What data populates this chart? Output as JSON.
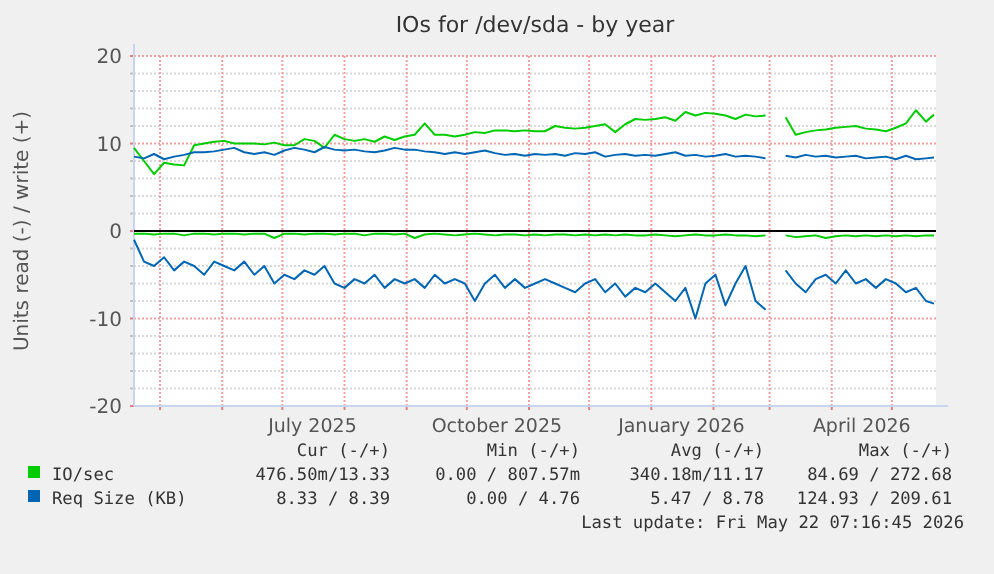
{
  "chart_data": {
    "type": "line",
    "title": "IOs for /dev/sda - by year",
    "ylabel": "Units read (-) / write (+)",
    "x": [
      "2025-04-18",
      "2025-04-23",
      "2025-04-28",
      "2025-05-03",
      "2025-05-08",
      "2025-05-13",
      "2025-05-18",
      "2025-05-23",
      "2025-05-28",
      "2025-06-02",
      "2025-06-07",
      "2025-06-12",
      "2025-06-17",
      "2025-06-22",
      "2025-06-27",
      "2025-07-02",
      "2025-07-07",
      "2025-07-12",
      "2025-07-17",
      "2025-07-22",
      "2025-07-27",
      "2025-08-01",
      "2025-08-06",
      "2025-08-11",
      "2025-08-16",
      "2025-08-21",
      "2025-08-26",
      "2025-08-31",
      "2025-09-05",
      "2025-09-10",
      "2025-09-15",
      "2025-09-20",
      "2025-09-25",
      "2025-09-30",
      "2025-10-05",
      "2025-10-10",
      "2025-10-15",
      "2025-10-20",
      "2025-10-25",
      "2025-10-30",
      "2025-11-04",
      "2025-11-09",
      "2025-11-14",
      "2025-11-19",
      "2025-11-24",
      "2025-11-29",
      "2025-12-04",
      "2025-12-09",
      "2025-12-14",
      "2025-12-19",
      "2025-12-24",
      "2025-12-29",
      "2026-01-03",
      "2026-01-08",
      "2026-01-13",
      "2026-01-18",
      "2026-01-23",
      "2026-01-28",
      "2026-02-02",
      "2026-02-07",
      "2026-02-12",
      "2026-02-17",
      "2026-02-22",
      "2026-02-27",
      "2026-03-04",
      "2026-03-09",
      "2026-03-14",
      "2026-03-19",
      "2026-03-24",
      "2026-03-29",
      "2026-04-03",
      "2026-04-08",
      "2026-04-13",
      "2026-04-18",
      "2026-04-23",
      "2026-04-28",
      "2026-05-03",
      "2026-05-08",
      "2026-05-13",
      "2026-05-18",
      "2026-05-22"
    ],
    "series": [
      {
        "name": "IO/sec",
        "color": "#00cc00",
        "values": [
          9.5,
          8,
          6.5,
          7.8,
          7.6,
          7.5,
          9.8,
          10,
          10.2,
          10.3,
          10,
          10,
          10,
          9.9,
          10.1,
          9.8,
          9.8,
          10.5,
          10.3,
          9.5,
          11,
          10.5,
          10.3,
          10.5,
          10.2,
          10.8,
          10.4,
          10.8,
          11,
          12.3,
          11,
          11,
          10.8,
          11,
          11.3,
          11.2,
          11.5,
          11.5,
          11.4,
          11.5,
          11.4,
          11.4,
          12,
          11.8,
          11.7,
          11.8,
          12,
          12.2,
          11.3,
          12.2,
          12.8,
          12.7,
          12.8,
          13,
          12.6,
          13.6,
          13.2,
          13.5,
          13.4,
          13.2,
          12.8,
          13.3,
          13.1,
          13.2,
          null,
          13,
          11,
          11.3,
          11.5,
          11.6,
          11.8,
          11.9,
          12,
          11.7,
          11.6,
          11.4,
          11.8,
          12.3,
          13.8,
          12.5,
          13.3
        ]
      },
      {
        "color": "#00cc00",
        "values": [
          -0.3,
          -0.3,
          -0.4,
          -0.3,
          -0.3,
          -0.5,
          -0.3,
          -0.3,
          -0.4,
          -0.3,
          -0.3,
          -0.4,
          -0.3,
          -0.3,
          -0.8,
          -0.3,
          -0.3,
          -0.4,
          -0.3,
          -0.3,
          -0.4,
          -0.3,
          -0.3,
          -0.5,
          -0.3,
          -0.3,
          -0.4,
          -0.3,
          -0.8,
          -0.4,
          -0.3,
          -0.4,
          -0.5,
          -0.4,
          -0.3,
          -0.4,
          -0.5,
          -0.4,
          -0.4,
          -0.5,
          -0.4,
          -0.5,
          -0.4,
          -0.4,
          -0.5,
          -0.4,
          -0.5,
          -0.4,
          -0.5,
          -0.4,
          -0.5,
          -0.5,
          -0.4,
          -0.5,
          -0.6,
          -0.5,
          -0.4,
          -0.5,
          -0.5,
          -0.4,
          -0.5,
          -0.5,
          -0.6,
          -0.5,
          null,
          -0.5,
          -0.7,
          -0.6,
          -0.5,
          -0.8,
          -0.6,
          -0.5,
          -0.6,
          -0.5,
          -0.6,
          -0.5,
          -0.6,
          -0.5,
          -0.6,
          -0.5,
          -0.5
        ]
      },
      {
        "name": "Req Size (KB)",
        "color": "#0066b3",
        "values": [
          8.5,
          8.3,
          8.8,
          8.2,
          8.5,
          8.7,
          9,
          9,
          9.1,
          9.3,
          9.5,
          9,
          8.8,
          9,
          8.7,
          9.2,
          9.5,
          9.3,
          9,
          9.6,
          9.3,
          9.2,
          9.3,
          9.1,
          9,
          9.2,
          9.5,
          9.3,
          9.3,
          9.1,
          9,
          8.8,
          9,
          8.8,
          9,
          9.2,
          8.9,
          8.7,
          8.8,
          8.6,
          8.8,
          8.7,
          8.8,
          8.6,
          8.9,
          8.8,
          9,
          8.5,
          8.7,
          8.8,
          8.6,
          8.7,
          8.6,
          8.8,
          9,
          8.6,
          8.7,
          8.5,
          8.6,
          8.8,
          8.5,
          8.6,
          8.5,
          8.3,
          null,
          8.6,
          8.4,
          8.7,
          8.5,
          8.6,
          8.4,
          8.5,
          8.6,
          8.3,
          8.4,
          8.5,
          8.2,
          8.6,
          8.2,
          8.3,
          8.4
        ]
      },
      {
        "color": "#0066b3",
        "values": [
          -1,
          -3.5,
          -4,
          -3,
          -4.5,
          -3.5,
          -4,
          -5,
          -3.5,
          -4,
          -4.5,
          -3.5,
          -5,
          -4,
          -6,
          -5,
          -5.5,
          -4.5,
          -5,
          -4,
          -6,
          -6.5,
          -5.5,
          -6,
          -5,
          -6.5,
          -5.5,
          -6,
          -5.5,
          -6.5,
          -5,
          -6,
          -5.5,
          -6,
          -8,
          -6,
          -5,
          -6.5,
          -5.5,
          -6.5,
          -6,
          -5.5,
          -6,
          -6.5,
          -7,
          -6,
          -5.5,
          -7,
          -6,
          -7.5,
          -6.5,
          -7,
          -6,
          -7,
          -8,
          -6.5,
          -10,
          -6,
          -5,
          -8.5,
          -6,
          -4,
          -8,
          -9,
          null,
          -4.5,
          -6,
          -7,
          -5.5,
          -5,
          -6,
          -4.5,
          -6,
          -5.5,
          -6.5,
          -5.5,
          -6,
          -7,
          -6.5,
          -8,
          -8.3
        ]
      }
    ],
    "xlim": [
      "2025-04-18",
      "2026-05-23"
    ],
    "xticks": [
      {
        "value": "2025-05-01",
        "label": null
      },
      {
        "value": "2025-06-01",
        "label": null
      },
      {
        "value": "2025-07-01",
        "label": null
      },
      {
        "value": "2025-07-16",
        "label": "July 2025"
      },
      {
        "value": "2025-08-01",
        "label": null
      },
      {
        "value": "2025-09-01",
        "label": null
      },
      {
        "value": "2025-10-01",
        "label": null
      },
      {
        "value": "2025-10-16",
        "label": "October 2025"
      },
      {
        "value": "2025-11-01",
        "label": null
      },
      {
        "value": "2025-12-01",
        "label": null
      },
      {
        "value": "2026-01-01",
        "label": null
      },
      {
        "value": "2026-01-16",
        "label": "January 2026"
      },
      {
        "value": "2026-02-01",
        "label": null
      },
      {
        "value": "2026-03-01",
        "label": null
      },
      {
        "value": "2026-04-01",
        "label": null
      },
      {
        "value": "2026-04-16",
        "label": "April 2026"
      },
      {
        "value": "2026-05-01",
        "label": null
      }
    ],
    "ylim": [
      -20,
      20
    ],
    "yticks": [
      -20,
      {
        "value": -18,
        "label": null
      },
      {
        "value": -16,
        "label": null
      },
      {
        "value": -14,
        "label": null
      },
      {
        "value": -12,
        "label": null
      },
      -10,
      {
        "value": -8,
        "label": null
      },
      {
        "value": -6,
        "label": null
      },
      {
        "value": -4,
        "label": null
      },
      {
        "value": -2,
        "label": null
      },
      0,
      {
        "value": 2,
        "label": null
      },
      {
        "value": 4,
        "label": null
      },
      {
        "value": 6,
        "label": null
      },
      {
        "value": 8,
        "label": null
      },
      10,
      {
        "value": 12,
        "label": null
      },
      {
        "value": 14,
        "label": null
      },
      {
        "value": 16,
        "label": null
      },
      {
        "value": 18,
        "label": null
      },
      20
    ],
    "ref_lines": [
      {
        "axis": "y",
        "value": 0,
        "color": "#000000"
      }
    ],
    "grid": true,
    "legend": "bottom",
    "line_style": "solid",
    "marker": "none",
    "annotations": [
      "Cur (-/+)",
      "Min (-/+)",
      "Avg (-/+)",
      "Max (-/+)",
      "476.50m/13.33",
      "0.00 / 807.57m",
      "340.18m/11.17",
      "84.69 / 272.68",
      "8.33 / 8.39",
      "0.00 / 4.76",
      "5.47 / 8.78",
      "124.93 / 209.61",
      "Last update: Fri May 22 07:16:45 2026"
    ]
  }
}
